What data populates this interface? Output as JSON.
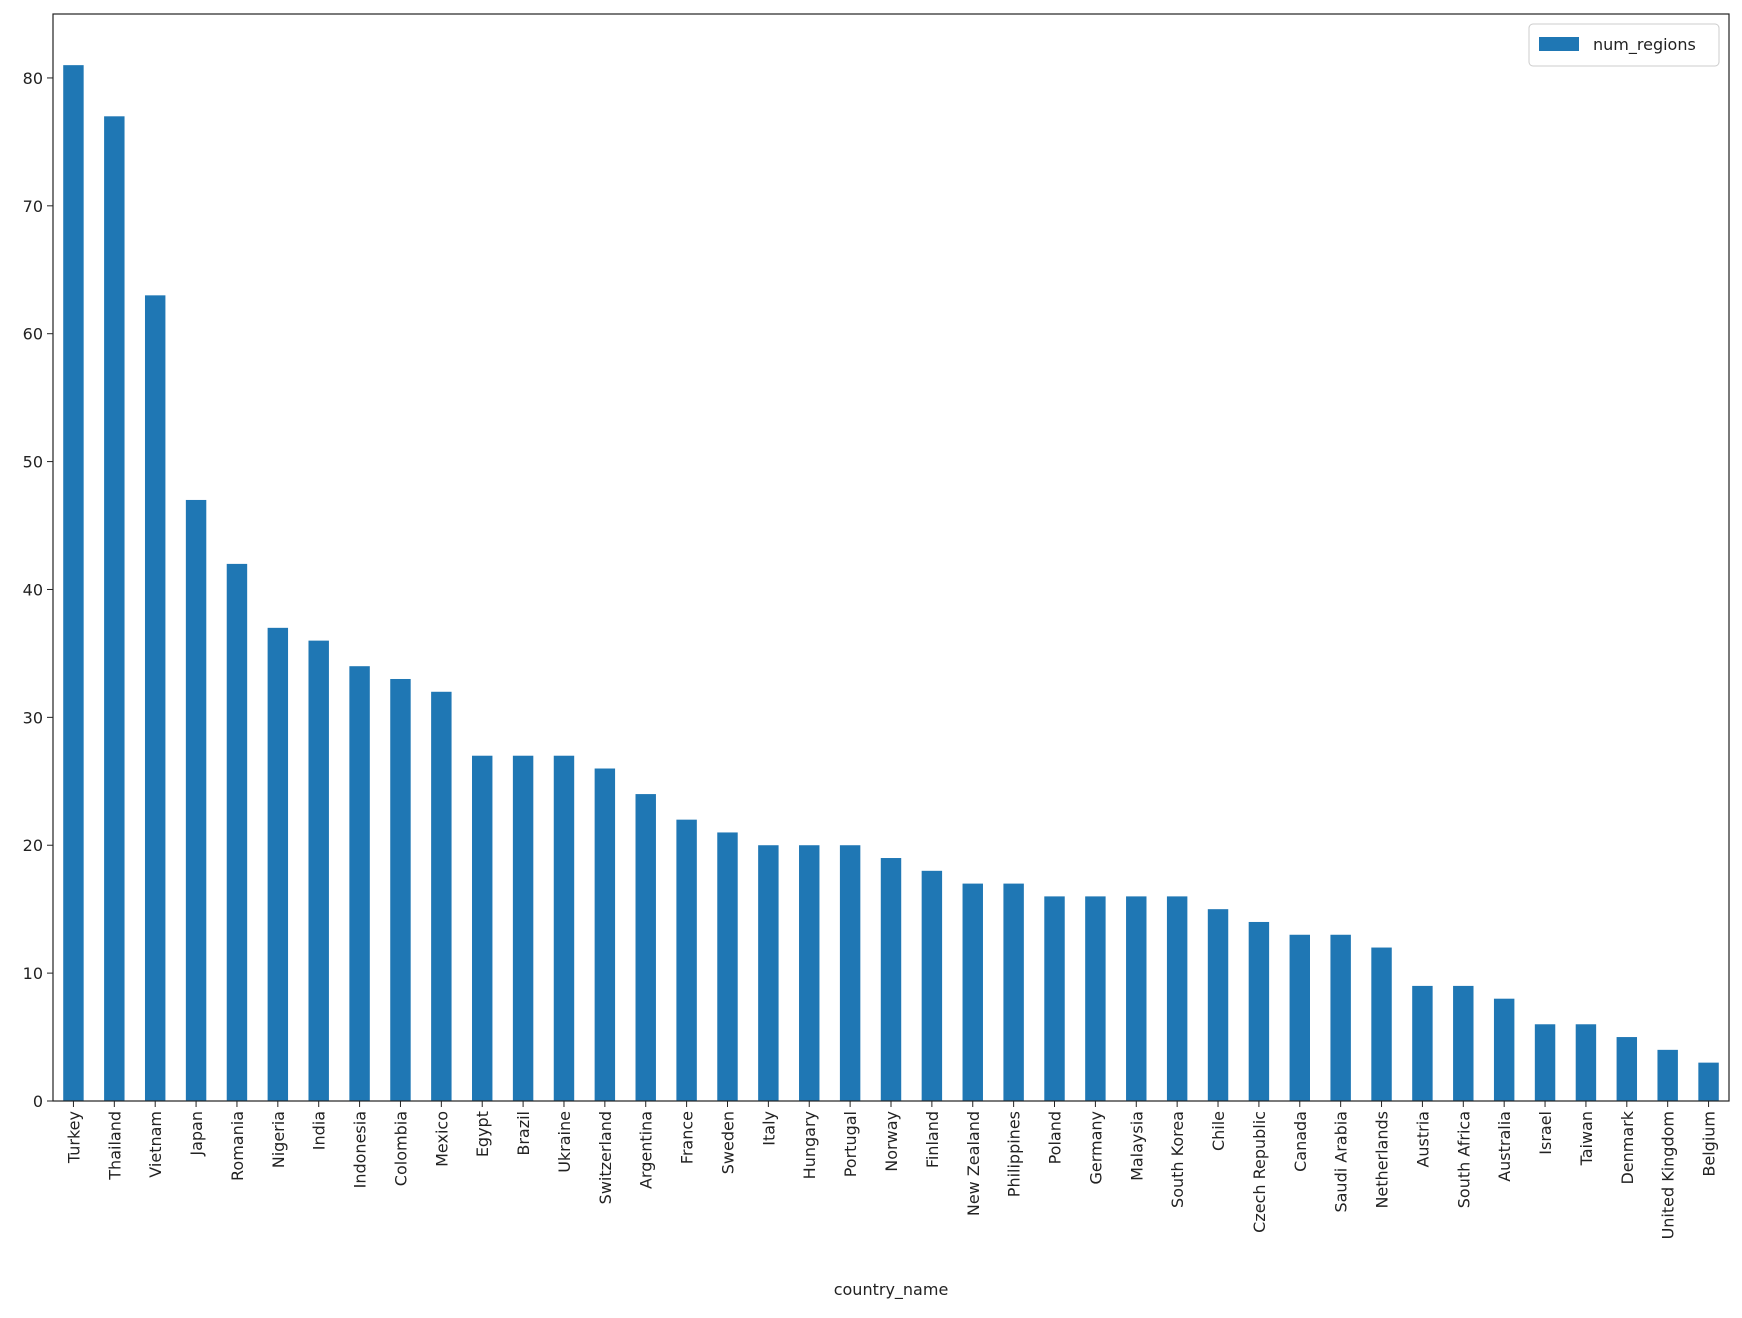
{
  "chart_data": {
    "type": "bar",
    "x_label": "country_name",
    "categories": [
      "Turkey",
      "Thailand",
      "Vietnam",
      "Japan",
      "Romania",
      "Nigeria",
      "India",
      "Indonesia",
      "Colombia",
      "Mexico",
      "Egypt",
      "Brazil",
      "Ukraine",
      "Switzerland",
      "Argentina",
      "France",
      "Sweden",
      "Italy",
      "Hungary",
      "Portugal",
      "Norway",
      "Finland",
      "New Zealand",
      "Philippines",
      "Poland",
      "Germany",
      "Malaysia",
      "South Korea",
      "Chile",
      "Czech Republic",
      "Canada",
      "Saudi Arabia",
      "Netherlands",
      "Austria",
      "South Africa",
      "Australia",
      "Israel",
      "Taiwan",
      "Denmark",
      "United Kingdom",
      "Belgium"
    ],
    "series": [
      {
        "name": "num_regions",
        "color": "#1f77b4",
        "values": [
          81,
          77,
          63,
          47,
          42,
          37,
          36,
          34,
          33,
          32,
          27,
          27,
          27,
          26,
          24,
          22,
          21,
          20,
          20,
          20,
          19,
          18,
          17,
          17,
          16,
          16,
          16,
          16,
          15,
          14,
          13,
          13,
          12,
          9,
          9,
          8,
          6,
          6,
          5,
          4,
          3
        ]
      }
    ],
    "ylim": [
      0,
      85
    ],
    "yticks": [
      0,
      10,
      20,
      30,
      40,
      50,
      60,
      70,
      80
    ],
    "legend": "upper right"
  }
}
